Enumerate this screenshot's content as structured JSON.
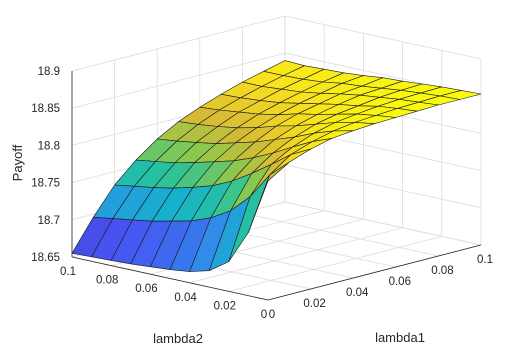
{
  "chart_data": {
    "type": "surface",
    "title": "",
    "xlabel": "lambda1",
    "ylabel": "lambda2",
    "zlabel": "Payoff",
    "xlim": [
      0,
      0.1
    ],
    "ylim": [
      0,
      0.1
    ],
    "zlim": [
      18.65,
      18.9
    ],
    "xticks": [
      "0",
      "0.02",
      "0.04",
      "0.06",
      "0.08",
      "0.1"
    ],
    "yticks": [
      "0",
      "0.02",
      "0.04",
      "0.06",
      "0.08",
      "0.1"
    ],
    "zticks": [
      "18.65",
      "18.7",
      "18.75",
      "18.8",
      "18.85",
      "18.9"
    ],
    "grid": true,
    "colormap": [
      "#3e26a8",
      "#4753f3",
      "#2e8fe8",
      "#18b1ce",
      "#28c39c",
      "#8dc84a",
      "#d8ba34",
      "#f8e11d",
      "#f9fb0e"
    ],
    "x": [
      0,
      0.01,
      0.02,
      0.03,
      0.04,
      0.05,
      0.06,
      0.07,
      0.08,
      0.09,
      0.1
    ],
    "y": [
      0,
      0.01,
      0.02,
      0.03,
      0.04,
      0.05,
      0.06,
      0.07,
      0.08,
      0.09,
      0.1
    ],
    "z": [
      [
        18.81,
        18.828,
        18.838,
        18.845,
        18.848,
        18.85,
        18.851,
        18.852,
        18.853,
        18.853,
        18.853
      ],
      [
        18.735,
        18.805,
        18.825,
        18.835,
        18.842,
        18.846,
        18.848,
        18.85,
        18.851,
        18.852,
        18.852
      ],
      [
        18.69,
        18.77,
        18.806,
        18.822,
        18.833,
        18.84,
        18.844,
        18.847,
        18.849,
        18.85,
        18.851
      ],
      [
        18.672,
        18.745,
        18.788,
        18.808,
        18.822,
        18.832,
        18.838,
        18.842,
        18.846,
        18.848,
        18.849
      ],
      [
        18.665,
        18.73,
        18.772,
        18.796,
        18.813,
        18.824,
        18.832,
        18.838,
        18.843,
        18.845,
        18.847
      ],
      [
        18.662,
        18.72,
        18.76,
        18.786,
        18.804,
        18.818,
        18.827,
        18.833,
        18.839,
        18.842,
        18.846
      ],
      [
        18.66,
        18.714,
        18.752,
        18.779,
        18.797,
        18.81,
        18.82,
        18.828,
        18.834,
        18.84,
        18.843
      ],
      [
        18.658,
        18.708,
        18.745,
        18.772,
        18.79,
        18.804,
        18.815,
        18.823,
        18.83,
        18.836,
        18.841
      ],
      [
        18.657,
        18.704,
        18.74,
        18.766,
        18.786,
        18.8,
        18.812,
        18.82,
        18.828,
        18.834,
        18.84
      ],
      [
        18.656,
        18.7,
        18.736,
        18.762,
        18.782,
        18.797,
        18.809,
        18.818,
        18.826,
        18.833,
        18.839
      ],
      [
        18.655,
        18.696,
        18.732,
        18.758,
        18.779,
        18.795,
        18.807,
        18.817,
        18.826,
        18.833,
        18.84
      ]
    ]
  }
}
